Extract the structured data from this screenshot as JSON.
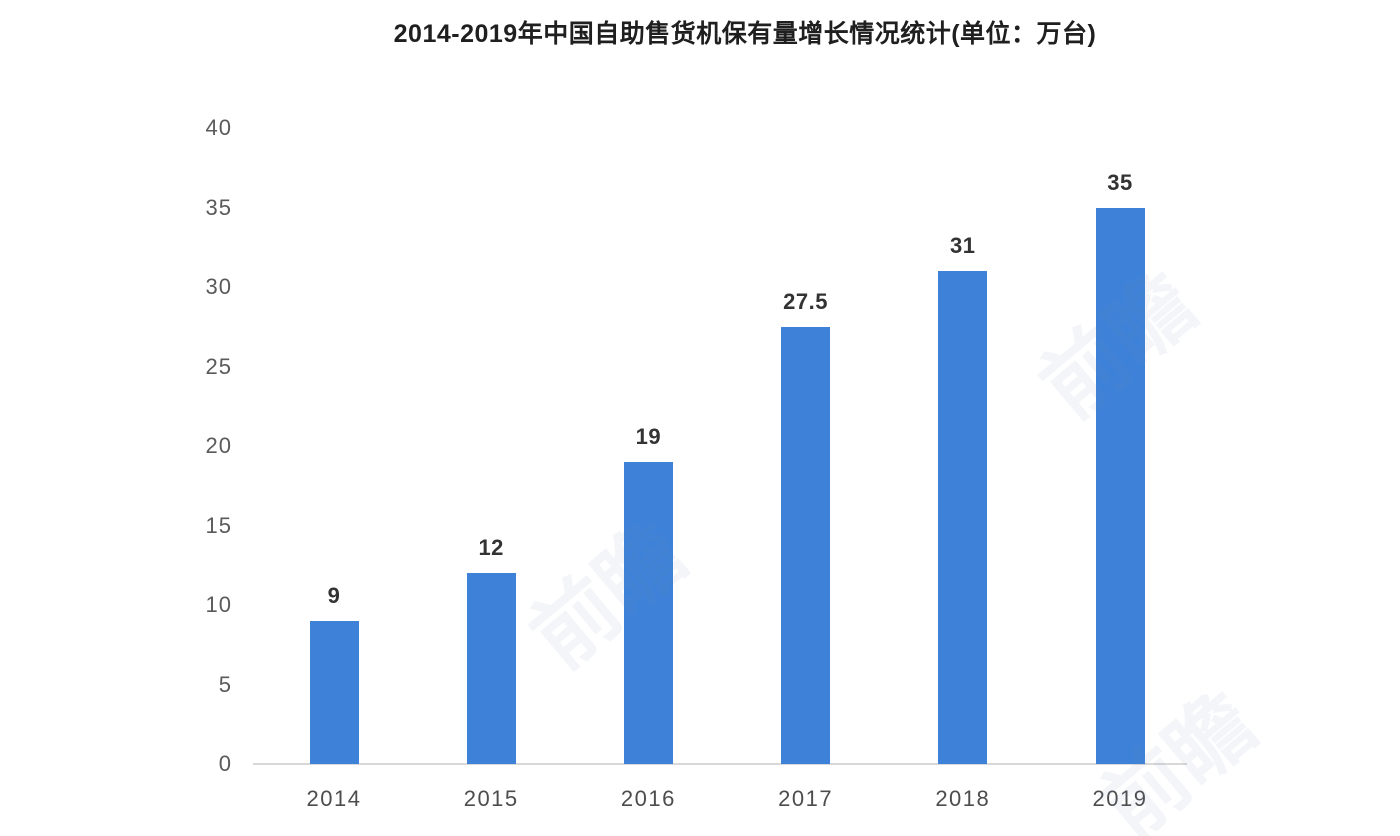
{
  "title": "2014-2019年中国自助售货机保有量增长情况统计(单位：万台)",
  "watermark": {
    "text": "前瞻"
  },
  "chart_data": {
    "type": "bar",
    "title": "2014-2019年中国自助售货机保有量增长情况统计(单位：万台)",
    "categories": [
      "2014",
      "2015",
      "2016",
      "2017",
      "2018",
      "2019"
    ],
    "values": [
      9,
      12,
      19,
      27.5,
      31,
      35
    ],
    "value_labels": [
      "9",
      "12",
      "19",
      "27.5",
      "31",
      "35"
    ],
    "xlabel": "",
    "ylabel": "",
    "ylim": [
      0,
      40
    ],
    "yticks": [
      0,
      5,
      10,
      15,
      20,
      25,
      30,
      35,
      40
    ],
    "grid": false,
    "legend": null,
    "unit": "万台",
    "colors": {
      "bar": "#3E81D8",
      "axis": "#D8D8D8",
      "tick_label": "#5A5A5A",
      "value_label": "#333333",
      "title": "#1F1F1F"
    }
  }
}
